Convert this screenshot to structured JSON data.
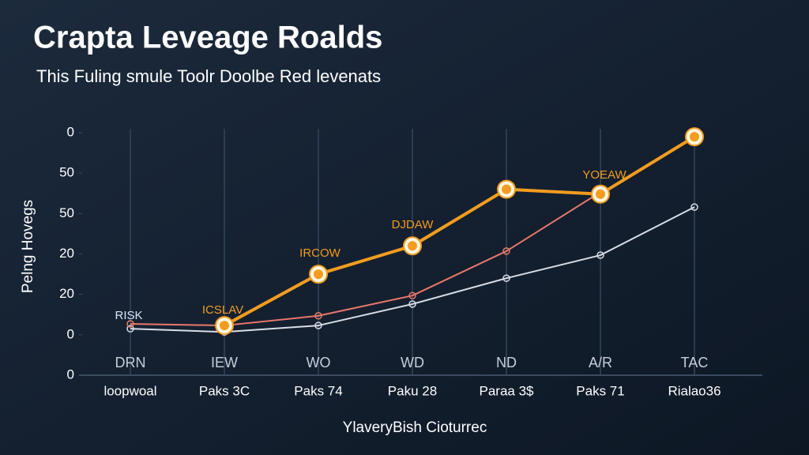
{
  "chart_data": {
    "type": "line",
    "title": "Crapta Leveage Roalds",
    "subtitle": "This Fuling smule Toolr Doolbe Red levenats",
    "y_label": "Pelng Hovegs",
    "x_label": "YlaveryBish Cioturrec",
    "categories": [
      "DRN",
      "IEW",
      "WO",
      "WD",
      "ND",
      "A/R",
      "TAC"
    ],
    "sublabels": [
      "loopwoal",
      "Paks 3C",
      "Paks 74",
      "Paku 28",
      "Paraa 3$",
      "Paks 71",
      "Rialao36"
    ],
    "ylim": [
      0,
      6
    ],
    "yticks": [
      0,
      {
        "value": 1,
        "label": "0"
      },
      {
        "value": 2,
        "label": "20"
      },
      {
        "value": 3,
        "label": "20"
      },
      {
        "value": 4,
        "label": "50"
      },
      {
        "value": 5,
        "label": "50"
      },
      {
        "value": 6,
        "label": "0"
      }
    ],
    "grid": true,
    "series": [
      {
        "color": "#f39c1f",
        "values": [
          null,
          1.23,
          2.5,
          3.2,
          4.6,
          4.48,
          5.9
        ]
      },
      {
        "color": "#e8786a",
        "values": [
          1.27,
          1.23,
          1.47,
          1.97,
          3.07,
          4.53,
          null
        ]
      },
      {
        "color": "#d8dde8",
        "values": [
          1.15,
          1.07,
          1.23,
          1.76,
          2.4,
          2.97,
          4.16
        ]
      }
    ],
    "annotations": [
      "RISK",
      "ICSLAV",
      "IRCOW",
      "DJDAW",
      "YOEAW"
    ]
  }
}
